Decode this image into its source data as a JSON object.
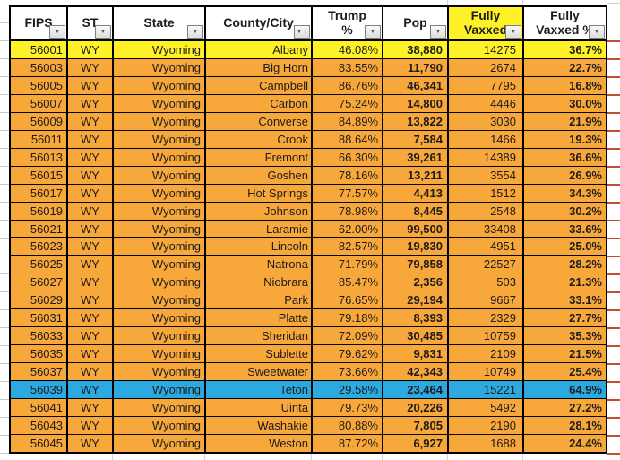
{
  "colors": {
    "row_orange": "#F8A73A",
    "row_yellow": "#FFF128",
    "row_blue": "#2CA9E1",
    "header_highlight": "#FFF128",
    "grid_black": "#000000",
    "margin_red_line": "#C2512B"
  },
  "icons": {
    "filter_arrow": "▼",
    "sort_ascending": "↑"
  },
  "table": {
    "columns": [
      {
        "key": "fips",
        "label": "FIPS",
        "filter": true,
        "sorted": false,
        "highlight": false
      },
      {
        "key": "st",
        "label": "ST",
        "filter": true,
        "sorted": false,
        "highlight": false
      },
      {
        "key": "state",
        "label": "State",
        "filter": true,
        "sorted": false,
        "highlight": false
      },
      {
        "key": "county-city",
        "label": "County/City",
        "filter": true,
        "sorted": true,
        "highlight": false
      },
      {
        "key": "trump-pct",
        "label": "Trump\n%",
        "filter": true,
        "sorted": false,
        "highlight": false
      },
      {
        "key": "pop",
        "label": "Pop",
        "filter": true,
        "sorted": false,
        "highlight": false
      },
      {
        "key": "fully-vaxxed",
        "label": "Fully\nVaxxed",
        "filter": true,
        "sorted": false,
        "highlight": true
      },
      {
        "key": "fully-vaxxed-pct",
        "label": "Fully\nVaxxed %",
        "filter": true,
        "sorted": false,
        "highlight": false
      }
    ],
    "rows": [
      {
        "highlight": "yellow",
        "cells": [
          "56001",
          "WY",
          "Wyoming",
          "Albany",
          "46.08%",
          "38,880",
          "14275",
          "36.7%"
        ]
      },
      {
        "highlight": "",
        "cells": [
          "56003",
          "WY",
          "Wyoming",
          "Big Horn",
          "83.55%",
          "11,790",
          "2674",
          "22.7%"
        ]
      },
      {
        "highlight": "",
        "cells": [
          "56005",
          "WY",
          "Wyoming",
          "Campbell",
          "86.76%",
          "46,341",
          "7795",
          "16.8%"
        ]
      },
      {
        "highlight": "",
        "cells": [
          "56007",
          "WY",
          "Wyoming",
          "Carbon",
          "75.24%",
          "14,800",
          "4446",
          "30.0%"
        ]
      },
      {
        "highlight": "",
        "cells": [
          "56009",
          "WY",
          "Wyoming",
          "Converse",
          "84.89%",
          "13,822",
          "3030",
          "21.9%"
        ]
      },
      {
        "highlight": "",
        "cells": [
          "56011",
          "WY",
          "Wyoming",
          "Crook",
          "88.64%",
          "7,584",
          "1466",
          "19.3%"
        ]
      },
      {
        "highlight": "",
        "cells": [
          "56013",
          "WY",
          "Wyoming",
          "Fremont",
          "66.30%",
          "39,261",
          "14389",
          "36.6%"
        ]
      },
      {
        "highlight": "",
        "cells": [
          "56015",
          "WY",
          "Wyoming",
          "Goshen",
          "78.16%",
          "13,211",
          "3554",
          "26.9%"
        ]
      },
      {
        "highlight": "",
        "cells": [
          "56017",
          "WY",
          "Wyoming",
          "Hot Springs",
          "77.57%",
          "4,413",
          "1512",
          "34.3%"
        ]
      },
      {
        "highlight": "",
        "cells": [
          "56019",
          "WY",
          "Wyoming",
          "Johnson",
          "78.98%",
          "8,445",
          "2548",
          "30.2%"
        ]
      },
      {
        "highlight": "",
        "cells": [
          "56021",
          "WY",
          "Wyoming",
          "Laramie",
          "62.00%",
          "99,500",
          "33408",
          "33.6%"
        ]
      },
      {
        "highlight": "",
        "cells": [
          "56023",
          "WY",
          "Wyoming",
          "Lincoln",
          "82.57%",
          "19,830",
          "4951",
          "25.0%"
        ]
      },
      {
        "highlight": "",
        "cells": [
          "56025",
          "WY",
          "Wyoming",
          "Natrona",
          "71.79%",
          "79,858",
          "22527",
          "28.2%"
        ]
      },
      {
        "highlight": "",
        "cells": [
          "56027",
          "WY",
          "Wyoming",
          "Niobrara",
          "85.47%",
          "2,356",
          "503",
          "21.3%"
        ]
      },
      {
        "highlight": "",
        "cells": [
          "56029",
          "WY",
          "Wyoming",
          "Park",
          "76.65%",
          "29,194",
          "9667",
          "33.1%"
        ]
      },
      {
        "highlight": "",
        "cells": [
          "56031",
          "WY",
          "Wyoming",
          "Platte",
          "79.18%",
          "8,393",
          "2329",
          "27.7%"
        ]
      },
      {
        "highlight": "",
        "cells": [
          "56033",
          "WY",
          "Wyoming",
          "Sheridan",
          "72.09%",
          "30,485",
          "10759",
          "35.3%"
        ]
      },
      {
        "highlight": "",
        "cells": [
          "56035",
          "WY",
          "Wyoming",
          "Sublette",
          "79.62%",
          "9,831",
          "2109",
          "21.5%"
        ]
      },
      {
        "highlight": "",
        "cells": [
          "56037",
          "WY",
          "Wyoming",
          "Sweetwater",
          "73.66%",
          "42,343",
          "10749",
          "25.4%"
        ]
      },
      {
        "highlight": "blue",
        "cells": [
          "56039",
          "WY",
          "Wyoming",
          "Teton",
          "29.58%",
          "23,464",
          "15221",
          "64.9%"
        ]
      },
      {
        "highlight": "",
        "cells": [
          "56041",
          "WY",
          "Wyoming",
          "Uinta",
          "79.73%",
          "20,226",
          "5492",
          "27.2%"
        ]
      },
      {
        "highlight": "",
        "cells": [
          "56043",
          "WY",
          "Wyoming",
          "Washakie",
          "80.88%",
          "7,805",
          "2190",
          "28.1%"
        ]
      },
      {
        "highlight": "",
        "cells": [
          "56045",
          "WY",
          "Wyoming",
          "Weston",
          "87.72%",
          "6,927",
          "1688",
          "24.4%"
        ]
      }
    ]
  }
}
